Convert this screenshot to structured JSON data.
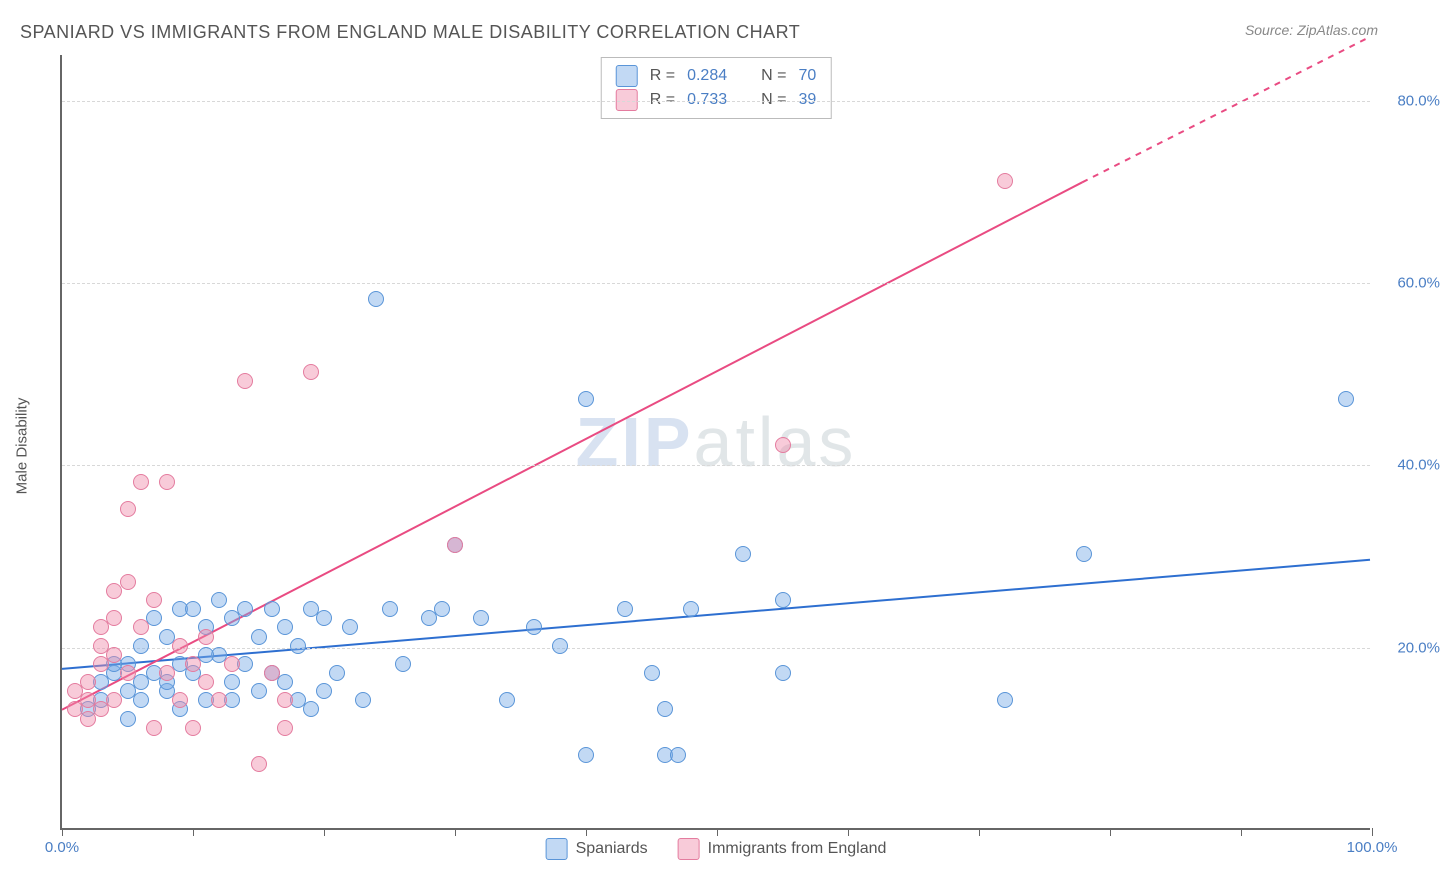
{
  "title": "SPANIARD VS IMMIGRANTS FROM ENGLAND MALE DISABILITY CORRELATION CHART",
  "source": "Source: ZipAtlas.com",
  "ylabel": "Male Disability",
  "watermark_zip": "ZIP",
  "watermark_atlas": "atlas",
  "chart": {
    "type": "scatter",
    "xlim": [
      0,
      100
    ],
    "ylim": [
      0,
      85
    ],
    "xtick_positions": [
      0,
      10,
      20,
      30,
      40,
      50,
      60,
      70,
      80,
      90,
      100
    ],
    "xtick_labels_shown": {
      "0": "0.0%",
      "100": "100.0%"
    },
    "ytick_positions": [
      20,
      40,
      60,
      80
    ],
    "ytick_labels": [
      "20.0%",
      "40.0%",
      "60.0%",
      "80.0%"
    ],
    "grid_color": "#d8d8d8",
    "background_color": "#ffffff",
    "label_color": "#4a7ec4",
    "axis_color": "#666666",
    "title_fontsize": 18,
    "label_fontsize": 15
  },
  "series": [
    {
      "name": "Spaniards",
      "marker_fill": "rgba(120, 170, 230, 0.45)",
      "marker_stroke": "#5a95d8",
      "line_color": "#2e6fd0",
      "line_width": 2,
      "R": "0.284",
      "N": "70",
      "trend": {
        "x1": 0,
        "y1": 17.5,
        "x2": 100,
        "y2": 29.5,
        "dashed": false
      },
      "points": [
        [
          2,
          13
        ],
        [
          3,
          14
        ],
        [
          3,
          16
        ],
        [
          4,
          17
        ],
        [
          5,
          12
        ],
        [
          5,
          18
        ],
        [
          6,
          16
        ],
        [
          6,
          20
        ],
        [
          7,
          23
        ],
        [
          7,
          17
        ],
        [
          8,
          15
        ],
        [
          8,
          21
        ],
        [
          9,
          24
        ],
        [
          9,
          18
        ],
        [
          10,
          17
        ],
        [
          10,
          24
        ],
        [
          11,
          14
        ],
        [
          11,
          22
        ],
        [
          12,
          19
        ],
        [
          12,
          25
        ],
        [
          13,
          16
        ],
        [
          13,
          23
        ],
        [
          14,
          18
        ],
        [
          14,
          24
        ],
        [
          15,
          21
        ],
        [
          15,
          15
        ],
        [
          16,
          17
        ],
        [
          16,
          24
        ],
        [
          17,
          22
        ],
        [
          18,
          14
        ],
        [
          18,
          20
        ],
        [
          19,
          24
        ],
        [
          20,
          15
        ],
        [
          20,
          23
        ],
        [
          21,
          17
        ],
        [
          22,
          22
        ],
        [
          23,
          14
        ],
        [
          24,
          58
        ],
        [
          25,
          24
        ],
        [
          26,
          18
        ],
        [
          28,
          23
        ],
        [
          29,
          24
        ],
        [
          30,
          31
        ],
        [
          32,
          23
        ],
        [
          34,
          14
        ],
        [
          36,
          22
        ],
        [
          38,
          20
        ],
        [
          40,
          8
        ],
        [
          40,
          47
        ],
        [
          43,
          24
        ],
        [
          45,
          17
        ],
        [
          46,
          8
        ],
        [
          46,
          13
        ],
        [
          47,
          8
        ],
        [
          48,
          24
        ],
        [
          52,
          30
        ],
        [
          55,
          17
        ],
        [
          55,
          25
        ],
        [
          72,
          14
        ],
        [
          78,
          30
        ],
        [
          98,
          47
        ],
        [
          4,
          18
        ],
        [
          5,
          15
        ],
        [
          6,
          14
        ],
        [
          8,
          16
        ],
        [
          9,
          13
        ],
        [
          11,
          19
        ],
        [
          13,
          14
        ],
        [
          17,
          16
        ],
        [
          19,
          13
        ]
      ]
    },
    {
      "name": "Immigrants from England",
      "marker_fill": "rgba(240, 140, 170, 0.45)",
      "marker_stroke": "#e47c9f",
      "line_color": "#e94b82",
      "line_width": 2,
      "R": "0.733",
      "N": "39",
      "trend": {
        "x1": 0,
        "y1": 13,
        "x2": 78,
        "y2": 71,
        "dashed_from_x": 78,
        "dashed_to": {
          "x": 100,
          "y": 87
        }
      },
      "points": [
        [
          1,
          13
        ],
        [
          1,
          15
        ],
        [
          2,
          14
        ],
        [
          2,
          16
        ],
        [
          2,
          12
        ],
        [
          3,
          13
        ],
        [
          3,
          18
        ],
        [
          3,
          22
        ],
        [
          4,
          19
        ],
        [
          4,
          26
        ],
        [
          4,
          14
        ],
        [
          5,
          27
        ],
        [
          5,
          35
        ],
        [
          5,
          17
        ],
        [
          6,
          22
        ],
        [
          6,
          38
        ],
        [
          7,
          11
        ],
        [
          7,
          25
        ],
        [
          8,
          17
        ],
        [
          8,
          38
        ],
        [
          9,
          20
        ],
        [
          9,
          14
        ],
        [
          10,
          18
        ],
        [
          10,
          11
        ],
        [
          11,
          16
        ],
        [
          11,
          21
        ],
        [
          12,
          14
        ],
        [
          13,
          18
        ],
        [
          14,
          49
        ],
        [
          15,
          7
        ],
        [
          16,
          17
        ],
        [
          17,
          14
        ],
        [
          17,
          11
        ],
        [
          19,
          50
        ],
        [
          30,
          31
        ],
        [
          55,
          42
        ],
        [
          72,
          71
        ],
        [
          3,
          20
        ],
        [
          4,
          23
        ]
      ]
    }
  ],
  "legend_bottom": [
    {
      "label": "Spaniards",
      "fill": "rgba(120, 170, 230, 0.55)",
      "stroke": "#5a95d8"
    },
    {
      "label": "Immigrants from England",
      "fill": "rgba(240, 140, 170, 0.55)",
      "stroke": "#e47c9f"
    }
  ],
  "legend_top_labels": {
    "R": "R =",
    "N": "N ="
  }
}
